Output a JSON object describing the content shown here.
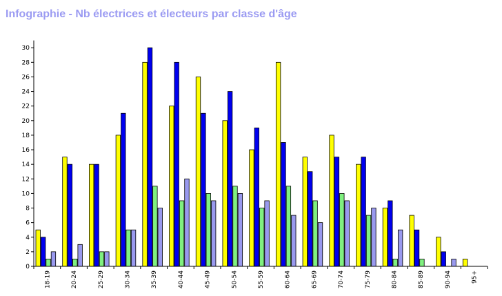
{
  "chart_data": {
    "type": "bar",
    "title": "Infographie - Nb électrices et électeurs par classe d'âge",
    "xlabel": "",
    "ylabel": "",
    "ylim": [
      0,
      31
    ],
    "yticks": [
      0,
      2,
      4,
      6,
      8,
      10,
      12,
      14,
      16,
      18,
      20,
      22,
      24,
      26,
      28,
      30
    ],
    "grid": false,
    "categories": [
      "18-19",
      "20-24",
      "25-29",
      "30-34",
      "35-39",
      "40-44",
      "45-49",
      "50-54",
      "55-59",
      "60-64",
      "65-69",
      "70-74",
      "75-79",
      "80-84",
      "85-89",
      "90-94",
      "95+"
    ],
    "series": [
      {
        "color": "#ffff00",
        "values": [
          5,
          15,
          14,
          18,
          28,
          22,
          26,
          20,
          16,
          28,
          15,
          18,
          14,
          8,
          7,
          4,
          1
        ]
      },
      {
        "color": "#0000ee",
        "values": [
          4,
          14,
          14,
          21,
          30,
          28,
          21,
          24,
          19,
          17,
          13,
          15,
          15,
          9,
          5,
          2,
          0
        ]
      },
      {
        "color": "#80f080",
        "values": [
          1,
          1,
          2,
          5,
          11,
          9,
          10,
          11,
          8,
          11,
          9,
          10,
          7,
          1,
          1,
          0,
          0
        ]
      },
      {
        "color": "#9999ee",
        "values": [
          2,
          3,
          2,
          5,
          8,
          12,
          9,
          10,
          9,
          7,
          6,
          9,
          8,
          5,
          0,
          1,
          0
        ]
      }
    ]
  }
}
